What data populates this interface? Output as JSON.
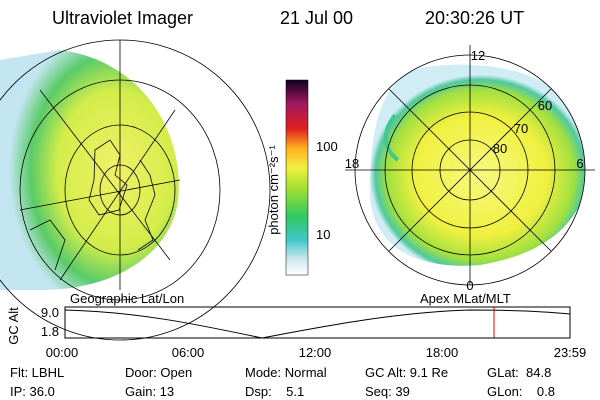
{
  "header": {
    "title": "Ultraviolet Imager",
    "date": "21 Jul 00",
    "time": "20:30:26 UT"
  },
  "colorbar": {
    "label": "photon cm⁻²s⁻¹",
    "ticks": [
      "100",
      "10"
    ]
  },
  "polar_labels": {
    "mlt": [
      "12",
      "18",
      "6",
      "0"
    ],
    "mlat": [
      "60",
      "70",
      "80"
    ]
  },
  "plot": {
    "left_label": "Geographic Lat/Lon",
    "right_label": "Apex MLat/MLT",
    "y_label": "GC Alt",
    "y_ticks": [
      "9.0",
      "1.8"
    ],
    "x_ticks": [
      "00:00",
      "06:00",
      "12:00",
      "18:00",
      "23:59"
    ]
  },
  "footer": {
    "rows": [
      [
        "Flt: LBHL",
        "Door: Open",
        "Mode: Normal",
        "GC Alt: 9.1 Re",
        "GLat:  84.8"
      ],
      [
        "IP: 36.0",
        "Gain: 13",
        "Dsp:    5.1",
        "Seq: 39",
        "GLon:    0.8"
      ]
    ]
  }
}
